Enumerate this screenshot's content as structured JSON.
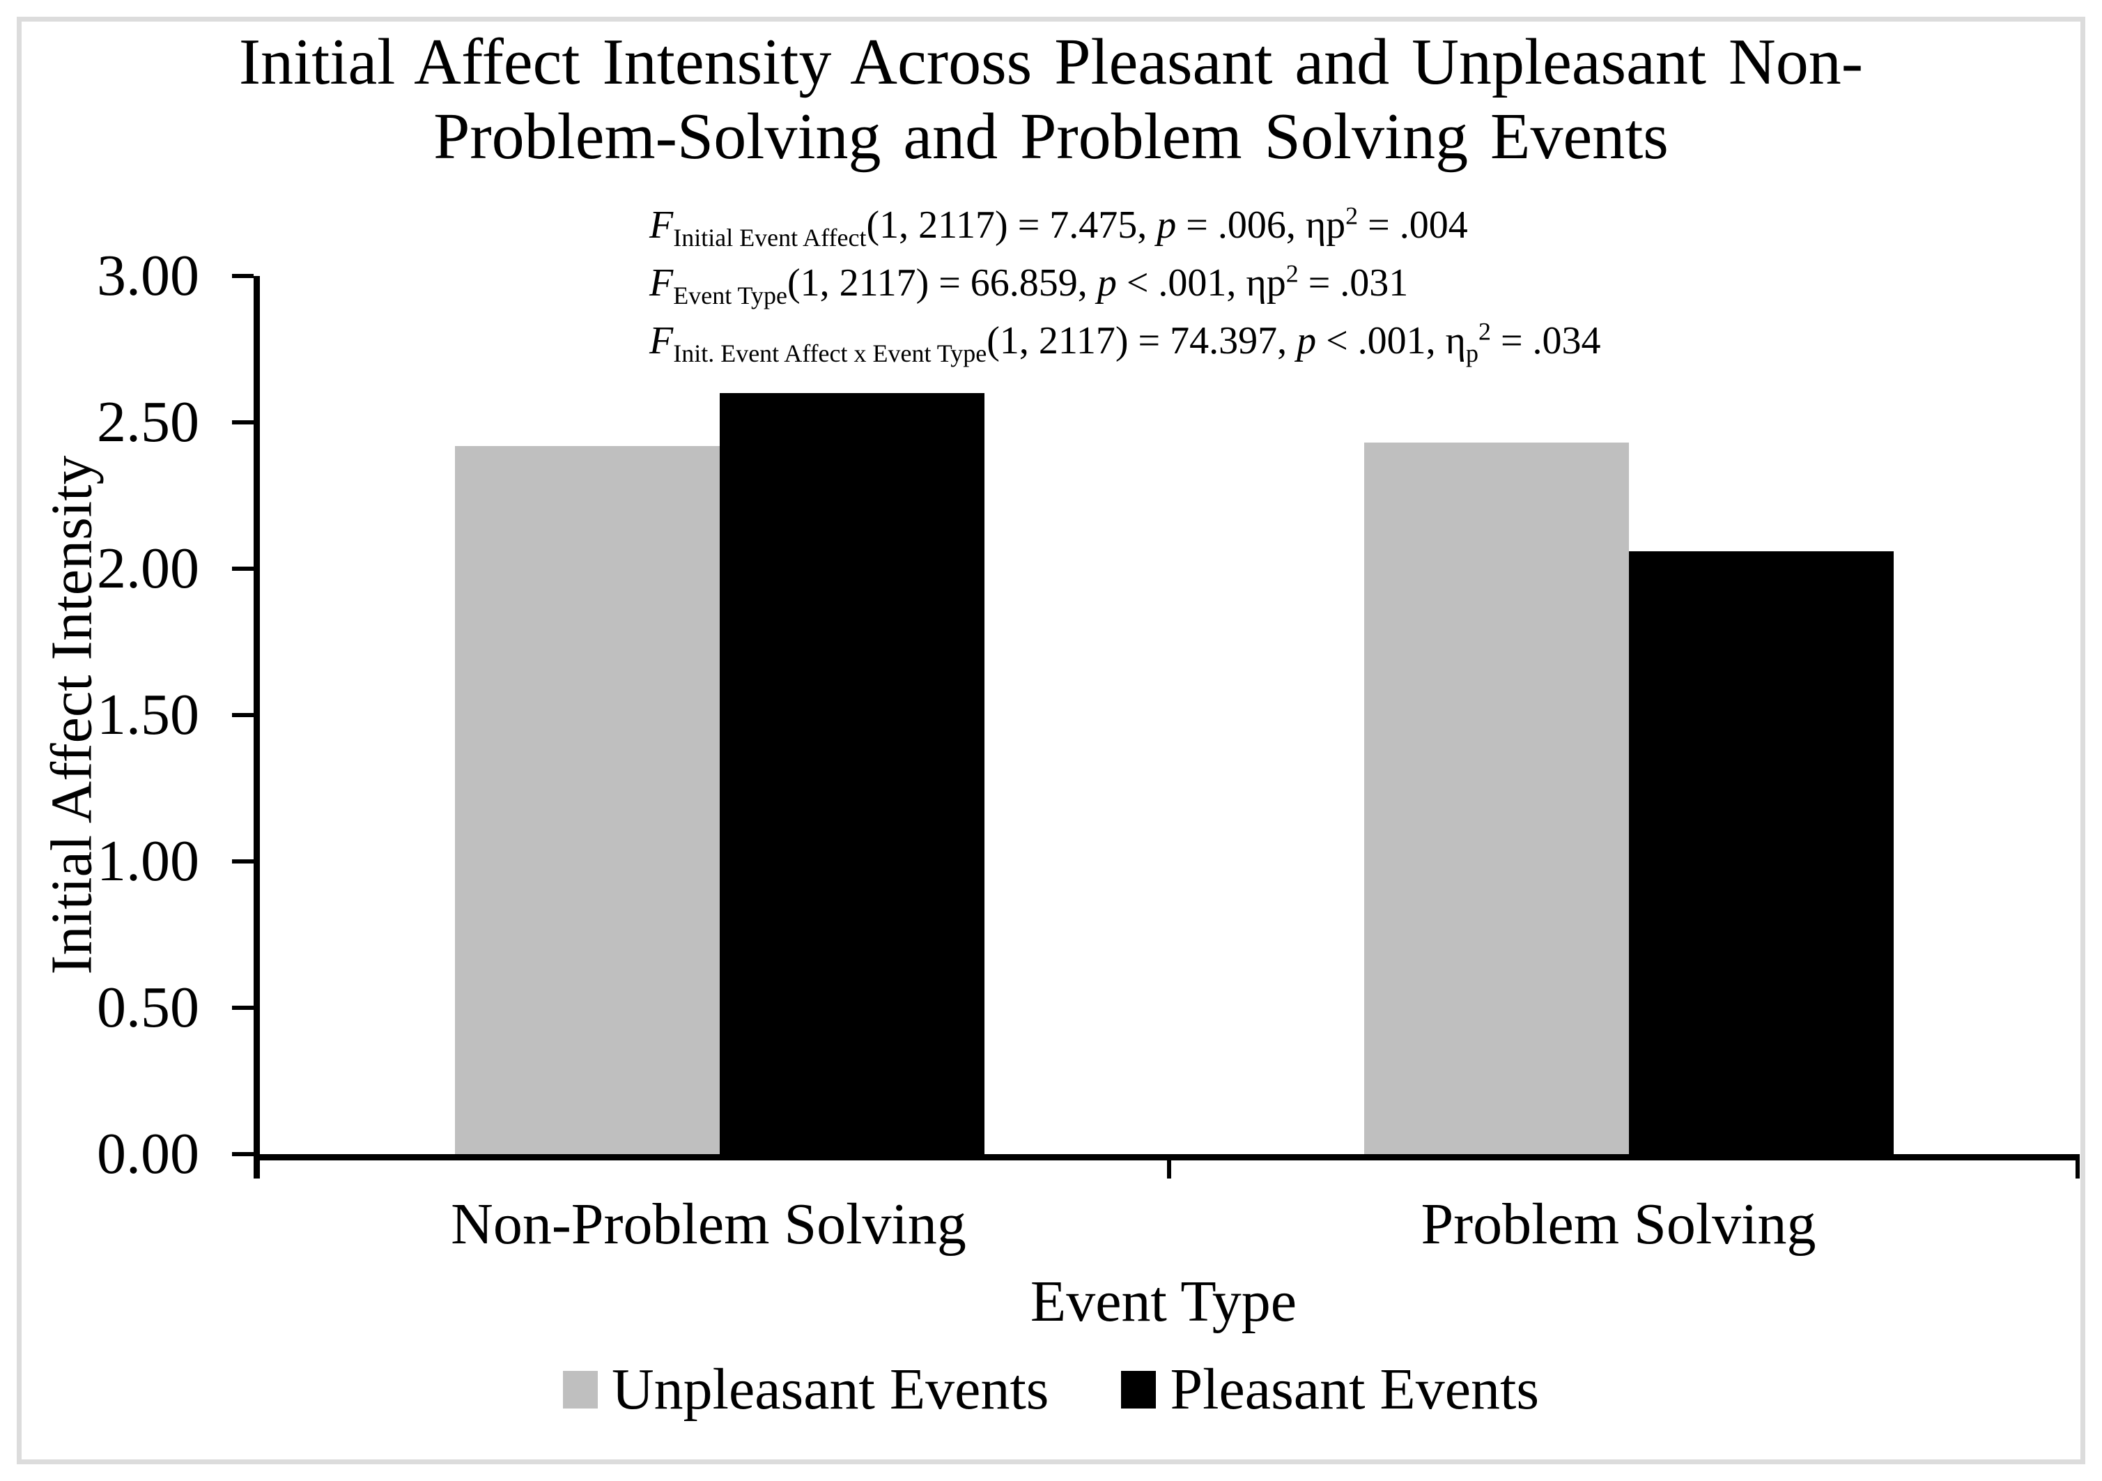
{
  "chart_data": {
    "type": "bar",
    "title": "Initial Affect Intensity Across Pleasant and Unpleasant Non-Problem-Solving and Problem Solving Events",
    "title_lines": [
      "Initial Affect Intensity Across Pleasant and Unpleasant Non-",
      "Problem-Solving and Problem Solving Events"
    ],
    "xlabel": "Event Type",
    "ylabel": "Initial Affect Intensity",
    "ylim": [
      0,
      3
    ],
    "ytick_step": 0.5,
    "ytick_labels": [
      "3.00",
      "2.50",
      "2.00",
      "1.50",
      "1.00",
      "0.50",
      "0.00"
    ],
    "categories": [
      "Non-Problem Solving",
      "Problem Solving"
    ],
    "series": [
      {
        "name": "Unpleasant Events",
        "color": "#BFBFBF",
        "values": [
          2.42,
          2.43
        ]
      },
      {
        "name": "Pleasant Events",
        "color": "#000000",
        "values": [
          2.6,
          2.06
        ]
      }
    ],
    "grid": false,
    "legend_position": "bottom",
    "annotations": [
      "F(Initial Event Affect)(1, 2117) = 7.475, p = .006, np2 = .004",
      "F(Event Type)(1, 2117) = 66.859, p < .001, np2 = .031",
      "F(Init. Event Affect x Event Type)(1, 2117) = 74.397, p < .001, np2 = .034"
    ]
  },
  "stats": {
    "lines": [
      {
        "f": "F",
        "sub": "Initial Event Affect",
        "mid": "(1, 2117) = 7.475, ",
        "p": "p",
        "rel": " = .006, ",
        "eta": "ηp",
        "eta_sub": "",
        "sup": "2",
        "tail": " = .004"
      },
      {
        "f": "F",
        "sub": "Event Type",
        "mid": "(1, 2117) = 66.859, ",
        "p": "p",
        "rel": " < .001, ",
        "eta": "ηp",
        "eta_sub": "",
        "sup": "2",
        "tail": " = .031"
      },
      {
        "f": "F",
        "sub": "Init. Event Affect x Event Type",
        "mid": "(1, 2117) = 74.397, ",
        "p": "p",
        "rel": " < .001, ",
        "eta": "η",
        "eta_sub": "p",
        "sup": "2",
        "tail": " = .034"
      }
    ]
  },
  "frame_color": "#DCDCDC"
}
